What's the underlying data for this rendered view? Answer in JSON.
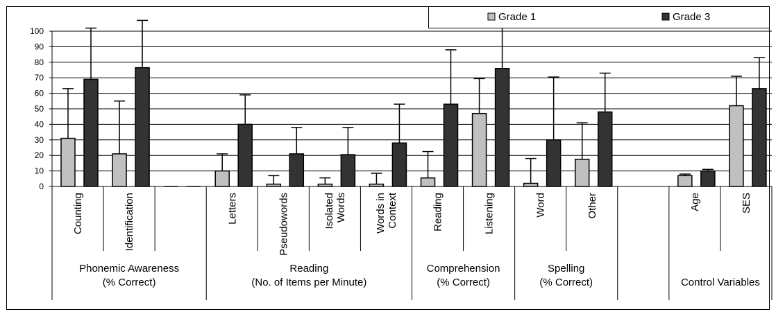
{
  "chart_data": {
    "type": "bar",
    "ylim": [
      0,
      100
    ],
    "yticks": [
      0,
      10,
      20,
      30,
      40,
      50,
      60,
      70,
      80,
      90,
      100
    ],
    "grid": true,
    "legend_position": "top-right",
    "series": [
      {
        "name": "Grade 1",
        "color": "#c0c0c0"
      },
      {
        "name": "Grade 3",
        "color": "#333333"
      }
    ],
    "categories": [
      {
        "label": "Counting",
        "g1": 31,
        "g1_err": 63,
        "g3": 69,
        "g3_err": 102
      },
      {
        "label": "Identification",
        "g1": 21,
        "g1_err": 55,
        "g3": 76.5,
        "g3_err": 107
      },
      {
        "label": "",
        "g1": 0,
        "g1_err": null,
        "g3": 0,
        "g3_err": null
      },
      {
        "label": "Letters",
        "g1": 10,
        "g1_err": 21,
        "g3": 40,
        "g3_err": 59
      },
      {
        "label": "Pseudowords",
        "g1": 1.5,
        "g1_err": 7,
        "g3": 21,
        "g3_err": 38
      },
      {
        "label": "Isolated Words",
        "g1": 1.5,
        "g1_err": 5.5,
        "g3": 20.5,
        "g3_err": 38
      },
      {
        "label": "Words in Context",
        "g1": 1.5,
        "g1_err": 8.5,
        "g3": 28,
        "g3_err": 53
      },
      {
        "label": "Reading",
        "g1": 5.5,
        "g1_err": 22.5,
        "g3": 53,
        "g3_err": 88
      },
      {
        "label": "Listening",
        "g1": 47,
        "g1_err": 69.5,
        "g3": 76,
        "g3_err": 104
      },
      {
        "label": "Word",
        "g1": 2,
        "g1_err": 18,
        "g3": 30,
        "g3_err": 70.5
      },
      {
        "label": "Other",
        "g1": 17.5,
        "g1_err": 41,
        "g3": 48,
        "g3_err": 73
      },
      {
        "label": "",
        "g1": null,
        "g1_err": null,
        "g3": null,
        "g3_err": null
      },
      {
        "label": "Age",
        "g1": 7,
        "g1_err": 8,
        "g3": 10,
        "g3_err": 11
      },
      {
        "label": "SES",
        "g1": 52,
        "g1_err": 71,
        "g3": 63,
        "g3_err": 83
      }
    ],
    "groups": [
      {
        "lines": [
          "Phonemic Awareness",
          "(% Correct)"
        ],
        "start": 0,
        "end": 3
      },
      {
        "lines": [
          "Reading",
          "(No. of Items per Minute)"
        ],
        "start": 3,
        "end": 7
      },
      {
        "lines": [
          "Comprehension",
          "(% Correct)"
        ],
        "start": 7,
        "end": 9
      },
      {
        "lines": [
          "Spelling",
          "(% Correct)"
        ],
        "start": 9,
        "end": 11
      },
      {
        "lines": [
          "Control Variables"
        ],
        "start": 12,
        "end": 14
      }
    ]
  }
}
